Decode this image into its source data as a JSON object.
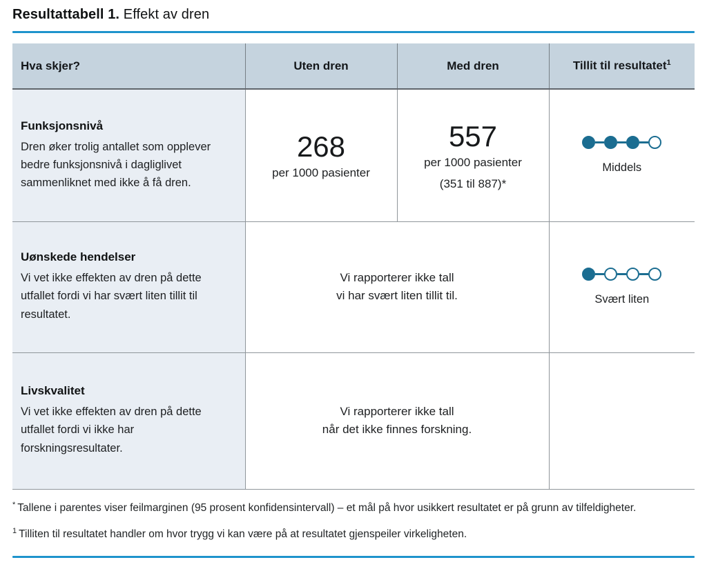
{
  "page": {
    "title_bold": "Resultattabell 1.",
    "title_rest": "Effekt av dren"
  },
  "colors": {
    "accent_blue": "#1e93cc",
    "teal": "#1b6d91",
    "header_bg": "#c5d3de",
    "outcome_bg": "#e9eef4"
  },
  "table": {
    "columns": {
      "what": "Hva skjer?",
      "without": "Uten dren",
      "with": "Med dren",
      "certainty": "Tillit til resultatet",
      "certainty_sup": "1"
    },
    "rows": [
      {
        "outcome": "Funksjonsnivå",
        "description": "Dren øker trolig antallet som opplever bedre funksjonsnivå i dagliglivet sammenliknet med ikke å få dren.",
        "without": {
          "value": "268",
          "unit": "per 1000 pasienter"
        },
        "with": {
          "value": "557",
          "unit": "per 1000 pasienter",
          "ci": "(351 til 887)*"
        },
        "certainty": {
          "label": "Middels",
          "filled": 3,
          "total": 4
        }
      },
      {
        "outcome": "Uønskede hendelser",
        "description": "Vi vet ikke effekten av dren på dette utfallet fordi vi har svært liten tillit til resultatet.",
        "merged_line1": "Vi rapporterer ikke tall",
        "merged_line2": "vi har svært liten tillit til.",
        "certainty": {
          "label": "Svært liten",
          "filled": 1,
          "total": 4
        }
      },
      {
        "outcome": "Livskvalitet",
        "description": "Vi vet ikke effekten av dren på dette utfallet fordi vi ikke har forskningsresultater.",
        "merged_line1": "Vi rapporterer ikke tall",
        "merged_line2": "når det ikke finnes forskning.",
        "certainty": null
      }
    ]
  },
  "footnotes": [
    {
      "sup": "*",
      "text": "Tallene i parentes viser feilmarginen (95 prosent konfidensintervall) – et mål på hvor usikkert resultatet er på grunn av tilfeldigheter."
    },
    {
      "sup": "1",
      "text": "Tilliten til resultatet handler om hvor trygg vi kan være på at resultatet gjenspeiler virkeligheten."
    }
  ]
}
